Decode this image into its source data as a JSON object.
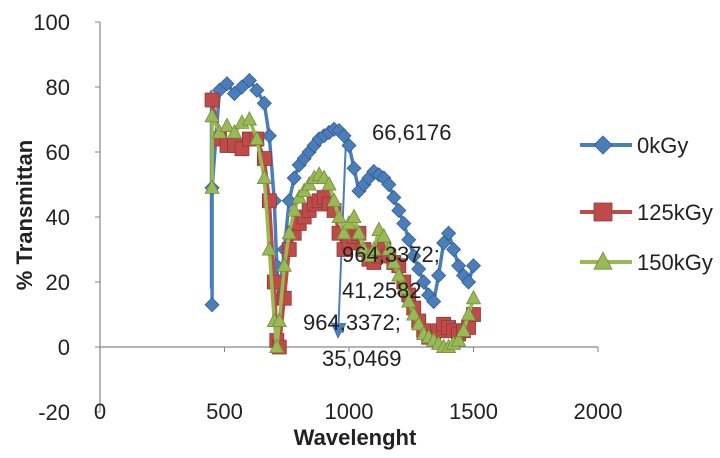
{
  "chart_data": {
    "type": "line",
    "xlabel": "Wavelenght",
    "ylabel": "% Transmittan",
    "xlim": [
      0,
      2000
    ],
    "ylim": [
      -20,
      100
    ],
    "x_ticks": [
      "0",
      "500",
      "1000",
      "1500",
      "2000"
    ],
    "y_ticks": [
      "-20",
      "0",
      "20",
      "40",
      "60",
      "80",
      "100"
    ],
    "grid": false,
    "legend_position": "right",
    "series": [
      {
        "name": "0kGy",
        "color": "#4a7ebb",
        "marker": "diamond",
        "x": [
          450,
          450,
          480,
          510,
          540,
          570,
          600,
          630,
          660,
          680,
          700,
          710,
          720,
          740,
          760,
          780,
          800,
          820,
          840,
          860,
          880,
          900,
          920,
          940,
          960,
          980,
          1000,
          1020,
          1040,
          1060,
          1080,
          1100,
          1120,
          1140,
          1160,
          1180,
          1200,
          1220,
          1240,
          1260,
          1280,
          1300,
          1320,
          1340,
          1360,
          1380,
          1400,
          1420,
          1440,
          1460,
          1480,
          1500
        ],
        "y": [
          13,
          49,
          79,
          81,
          78,
          80,
          82,
          79,
          75,
          65,
          45,
          25,
          15,
          30,
          45,
          52,
          56,
          58,
          60,
          62,
          64,
          65,
          66,
          67,
          66.6,
          65,
          62,
          55,
          48,
          50,
          52,
          54,
          53,
          52,
          50,
          46,
          42,
          38,
          33,
          28,
          24,
          20,
          16,
          14,
          22,
          32,
          35,
          30,
          25,
          22,
          20,
          25
        ]
      },
      {
        "name": "125kGy",
        "color": "#be4b48",
        "marker": "square",
        "x": [
          450,
          480,
          510,
          540,
          570,
          600,
          630,
          660,
          680,
          700,
          710,
          720,
          740,
          760,
          780,
          800,
          820,
          840,
          860,
          880,
          900,
          920,
          940,
          960,
          980,
          1000,
          1020,
          1040,
          1060,
          1080,
          1100,
          1120,
          1140,
          1160,
          1180,
          1200,
          1220,
          1240,
          1260,
          1280,
          1300,
          1320,
          1340,
          1360,
          1380,
          1400,
          1420,
          1440,
          1460,
          1480,
          1500
        ],
        "y": [
          76,
          64,
          62,
          62,
          61,
          64,
          64,
          58,
          45,
          20,
          2,
          0,
          15,
          30,
          35,
          38,
          40,
          42,
          44,
          45,
          46,
          44,
          42,
          35,
          30,
          32,
          34,
          35,
          30,
          27,
          26,
          28,
          30,
          28,
          26,
          25,
          20,
          16,
          12,
          8,
          5,
          3,
          3,
          5,
          7,
          6,
          5,
          4,
          5,
          6,
          10
        ]
      },
      {
        "name": "150kGy",
        "color": "#98b954",
        "marker": "triangle",
        "x": [
          450,
          450,
          480,
          510,
          540,
          570,
          600,
          630,
          660,
          680,
          700,
          710,
          720,
          740,
          760,
          780,
          800,
          820,
          840,
          860,
          880,
          900,
          920,
          940,
          960,
          980,
          1000,
          1020,
          1040,
          1060,
          1080,
          1100,
          1120,
          1140,
          1160,
          1180,
          1200,
          1220,
          1240,
          1260,
          1280,
          1300,
          1320,
          1340,
          1360,
          1380,
          1400,
          1420,
          1440,
          1460,
          1480,
          1500
        ],
        "y": [
          49,
          71,
          66,
          68,
          66,
          69,
          70,
          64,
          52,
          30,
          8,
          0,
          8,
          25,
          35,
          42,
          46,
          48,
          50,
          52,
          53,
          52,
          50,
          45,
          40,
          35,
          38,
          40,
          35,
          30,
          28,
          30,
          36,
          34,
          30,
          26,
          22,
          18,
          14,
          10,
          7,
          4,
          3,
          2,
          1,
          0,
          0,
          1,
          2,
          5,
          10,
          15
        ]
      }
    ],
    "annotations": [
      {
        "id": "a1",
        "lines": [
          "66,6176"
        ],
        "x": 964,
        "y": 66.6
      },
      {
        "id": "a2",
        "lines": [
          "964,3372;",
          "41,2582"
        ]
      },
      {
        "id": "a3",
        "lines": [
          "964,3372;",
          "35,0469"
        ]
      }
    ]
  }
}
